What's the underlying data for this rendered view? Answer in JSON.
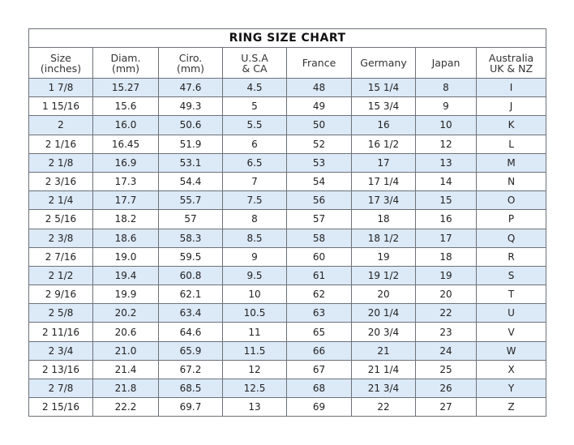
{
  "title": "RING SIZE CHART",
  "headers": [
    "Size\n(inches)",
    "Diam.\n(mm)",
    "Ciro.\n(mm)",
    "U.S.A\n& CA",
    "France",
    "Germany",
    "Japan",
    "Australia\nUK & NZ"
  ],
  "rows": [
    [
      "1 7/8",
      "15.27",
      "47.6",
      "4.5",
      "48",
      "15 1/4",
      "8",
      "I"
    ],
    [
      "1 15/16",
      "15.6",
      "49.3",
      "5",
      "49",
      "15 3/4",
      "9",
      "J"
    ],
    [
      "2",
      "16.0",
      "50.6",
      "5.5",
      "50",
      "16",
      "10",
      "K"
    ],
    [
      "2 1/16",
      "16.45",
      "51.9",
      "6",
      "52",
      "16 1/2",
      "12",
      "L"
    ],
    [
      "2 1/8",
      "16.9",
      "53.1",
      "6.5",
      "53",
      "17",
      "13",
      "M"
    ],
    [
      "2 3/16",
      "17.3",
      "54.4",
      "7",
      "54",
      "17 1/4",
      "14",
      "N"
    ],
    [
      "2 1/4",
      "17.7",
      "55.7",
      "7.5",
      "56",
      "17 3/4",
      "15",
      "O"
    ],
    [
      "2 5/16",
      "18.2",
      "57",
      "8",
      "57",
      "18",
      "16",
      "P"
    ],
    [
      "2 3/8",
      "18.6",
      "58.3",
      "8.5",
      "58",
      "18 1/2",
      "17",
      "Q"
    ],
    [
      "2 7/16",
      "19.0",
      "59.5",
      "9",
      "60",
      "19",
      "18",
      "R"
    ],
    [
      "2 1/2",
      "19.4",
      "60.8",
      "9.5",
      "61",
      "19 1/2",
      "19",
      "S"
    ],
    [
      "2 9/16",
      "19.9",
      "62.1",
      "10",
      "62",
      "20",
      "20",
      "T"
    ],
    [
      "2 5/8",
      "20.2",
      "63.4",
      "10.5",
      "63",
      "20 1/4",
      "22",
      "U"
    ],
    [
      "2 11/16",
      "20.6",
      "64.6",
      "11",
      "65",
      "20 3/4",
      "23",
      "V"
    ],
    [
      "2 3/4",
      "21.0",
      "65.9",
      "11.5",
      "66",
      "21",
      "24",
      "W"
    ],
    [
      "2 13/16",
      "21.4",
      "67.2",
      "12",
      "67",
      "21 1/4",
      "25",
      "X"
    ],
    [
      "2 7/8",
      "21.8",
      "68.5",
      "12.5",
      "68",
      "21 3/4",
      "26",
      "Y"
    ],
    [
      "2 15/16",
      "22.2",
      "69.7",
      "13",
      "69",
      "22",
      "27",
      "Z"
    ]
  ],
  "colors": {
    "shaded_row": "#dce9f7",
    "border": "#6d7278"
  }
}
